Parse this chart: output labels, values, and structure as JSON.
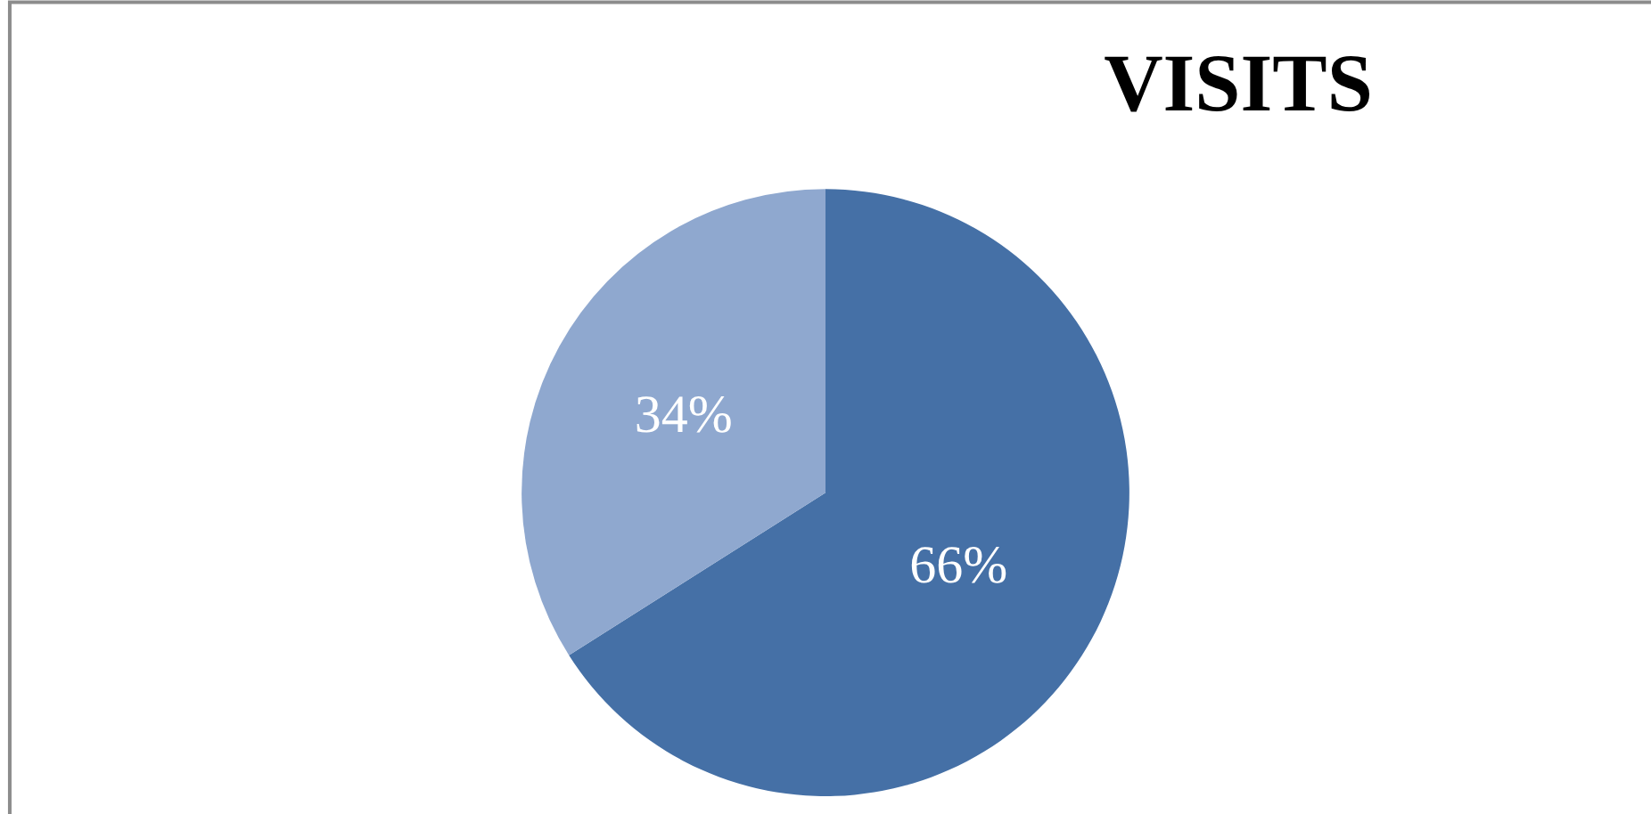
{
  "chart_data": {
    "type": "pie",
    "title": "VISITS",
    "categories": [
      null,
      null
    ],
    "values": [
      66,
      34
    ],
    "colors": [
      "#4570a6",
      "#8fa8cf"
    ],
    "value_labels": [
      "66%",
      "34%"
    ],
    "legend": false
  }
}
